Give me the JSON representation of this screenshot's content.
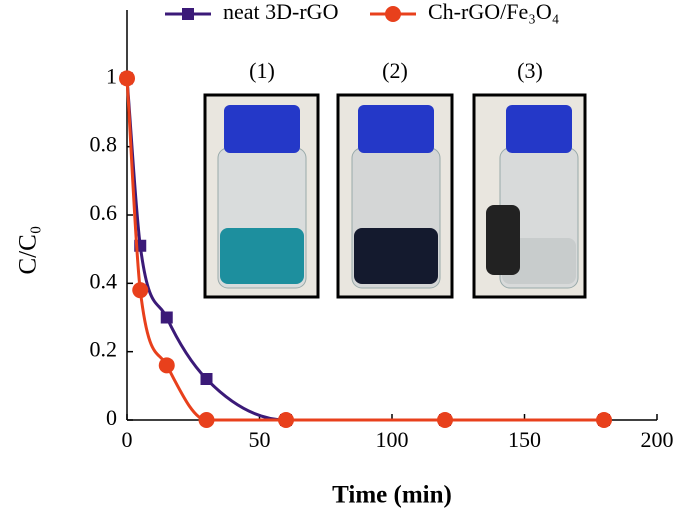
{
  "chart_data": {
    "type": "line",
    "x_label": "Time (min)",
    "y_label": "C/C₀",
    "xlim": [
      0,
      200
    ],
    "xticks": [
      0,
      50,
      100,
      150,
      200
    ],
    "ylim": [
      0,
      1.2
    ],
    "yticks": [
      0,
      0.2,
      0.4,
      0.6,
      0.8,
      1
    ],
    "legend": "top",
    "smooth": true,
    "annotations": [
      "(1)",
      "(2)",
      "(3)"
    ],
    "series": [
      {
        "name": "neat 3D-rGO",
        "color": "#3b1a78",
        "marker": "square",
        "x": [
          0,
          5,
          15,
          30,
          60,
          120,
          180
        ],
        "values": [
          1,
          0.51,
          0.3,
          0.12,
          0,
          0,
          0
        ]
      },
      {
        "name": "Ch-rGO/Fe₃O₄",
        "color": "#e8401c",
        "marker": "circle",
        "x": [
          0,
          5,
          15,
          30,
          60,
          120,
          180
        ],
        "values": [
          1,
          0.38,
          0.16,
          0,
          0,
          0,
          0
        ]
      }
    ]
  }
}
